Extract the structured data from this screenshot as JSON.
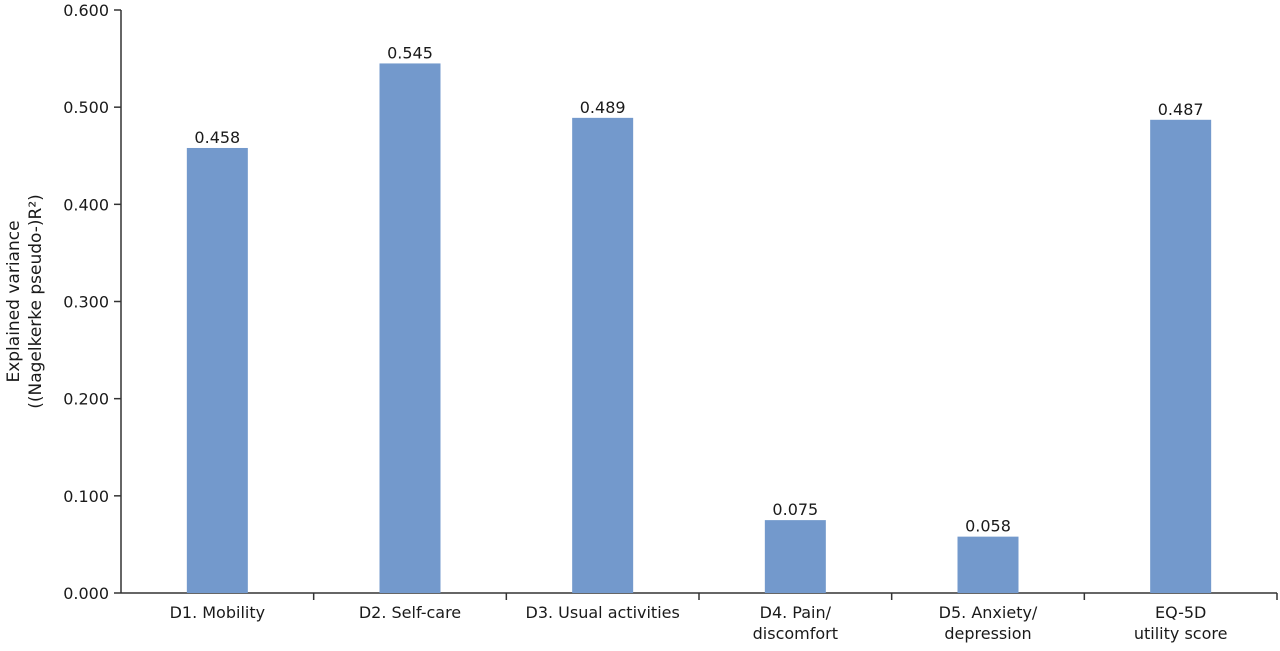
{
  "chart_data": {
    "type": "bar",
    "categories": [
      [
        "D1. Mobility"
      ],
      [
        "D2. Self-care"
      ],
      [
        "D3. Usual activities"
      ],
      [
        "D4. Pain/",
        "discomfort"
      ],
      [
        "D5. Anxiety/",
        "depression"
      ],
      [
        "EQ-5D",
        "utility score"
      ]
    ],
    "values": [
      0.458,
      0.545,
      0.489,
      0.075,
      0.058,
      0.487
    ],
    "value_labels": [
      "0.458",
      "0.545",
      "0.489",
      "0.075",
      "0.058",
      "0.487"
    ],
    "ylabel": [
      "Explained variance",
      "((Nagelkerke pseudo-)R²)"
    ],
    "ylim": [
      0,
      0.6
    ],
    "yticks": [
      0,
      0.1,
      0.2,
      0.3,
      0.4,
      0.5,
      0.6
    ],
    "ytick_labels": [
      "0.000",
      "0.100",
      "0.200",
      "0.300",
      "0.400",
      "0.500",
      "0.600"
    ],
    "bar_color": "#7399cc",
    "axis_color": "#333333",
    "grid": false,
    "legend": "none"
  }
}
